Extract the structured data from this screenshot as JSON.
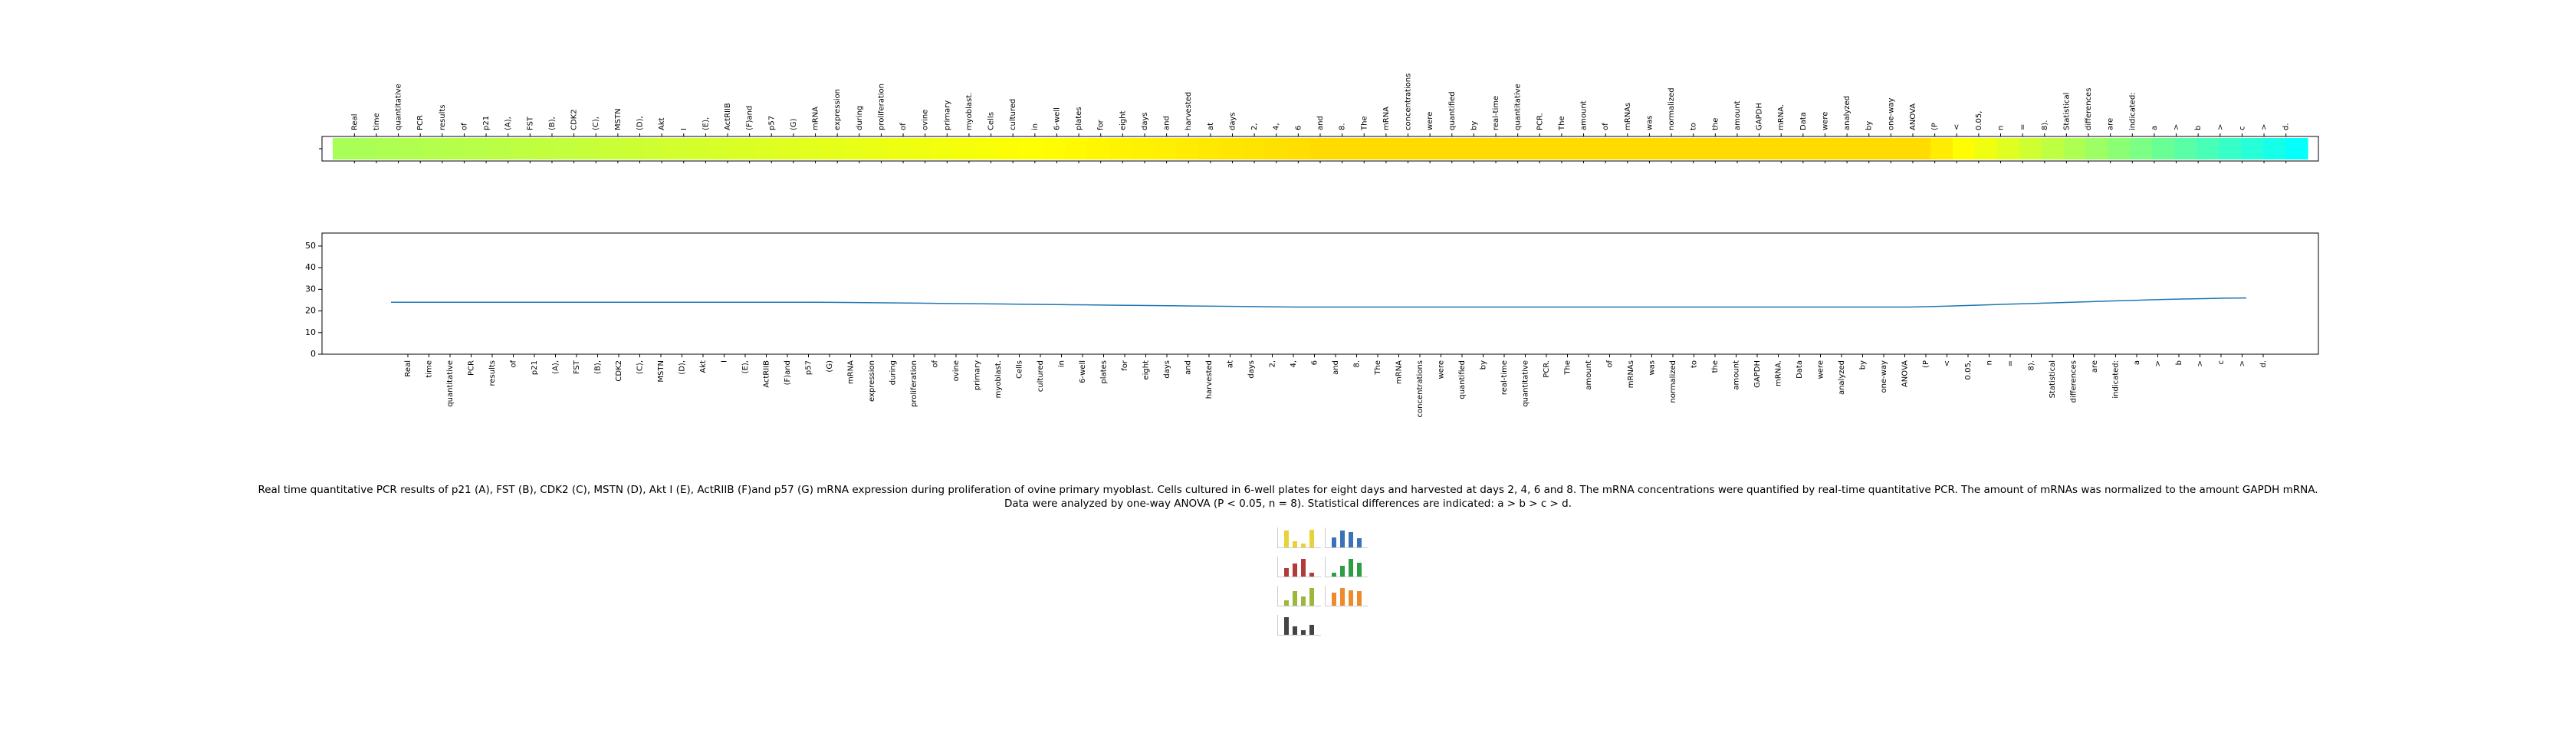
{
  "caption": "Real time quantitative PCR results of p21 (A), FST (B), CDK2 (C), MSTN (D), Akt I (E), ActRIIB (F)and p57 (G) mRNA expression during proliferation of ovine primary myoblast. Cells cultured in 6-well plates for eight days and harvested at days 2, 4, 6 and 8. The mRNA concentrations were quantified by real-time quantitative PCR. The amount of mRNAs was normalized to the amount GAPDH mRNA. Data were analyzed by one-way ANOVA (P < 0.05, n = 8). Statistical differences are indicated: a > b > c > d.",
  "chart_data": [
    {
      "type": "heatmap",
      "colormap": "jet",
      "x_tick_position": "top",
      "ticks": [
        "Real",
        "time",
        "quantitative",
        "PCR",
        "results",
        "of",
        "p21",
        "(A),",
        "FST",
        "(B),",
        "CDK2",
        "(C),",
        "MSTN",
        "(D),",
        "Akt",
        "I",
        "(E),",
        "ActRIIB",
        "(F)and",
        "p57",
        "(G)",
        "mRNA",
        "expression",
        "during",
        "proliferation",
        "of",
        "ovine",
        "primary",
        "myoblast.",
        "Cells",
        "cultured",
        "in",
        "6-well",
        "plates",
        "for",
        "eight",
        "days",
        "and",
        "harvested",
        "at",
        "days",
        "2,",
        "4,",
        "6",
        "and",
        "8.",
        "The",
        "mRNA",
        "concentrations",
        "were",
        "quantified",
        "by",
        "real-time",
        "quantitative",
        "PCR.",
        "The",
        "amount",
        "of",
        "mRNAs",
        "was",
        "normalized",
        "to",
        "the",
        "amount",
        "GAPDH",
        "mRNA.",
        "Data",
        "were",
        "analyzed",
        "by",
        "one-way",
        "ANOVA",
        "(P",
        "<",
        "0.05,",
        "n",
        "=",
        "8).",
        "Statistical",
        "differences",
        "are",
        "indicated:",
        "a",
        ">",
        "b",
        ">",
        "c",
        ">",
        "d."
      ],
      "values": [
        24.0,
        23.95,
        23.9,
        23.85,
        23.8,
        23.75,
        23.7,
        23.65,
        23.6,
        23.55,
        23.5,
        23.45,
        23.4,
        23.35,
        23.3,
        23.25,
        23.2,
        23.15,
        23.1,
        23.05,
        23.0,
        22.95,
        22.9,
        22.85,
        22.8,
        22.75,
        22.7,
        22.65,
        22.6,
        22.55,
        22.5,
        22.45,
        22.4,
        22.35,
        22.3,
        22.25,
        22.2,
        22.15,
        22.1,
        22.05,
        22.0,
        21.95,
        21.9,
        21.85,
        21.8,
        21.8,
        21.8,
        21.8,
        21.8,
        21.8,
        21.8,
        21.8,
        21.8,
        21.8,
        21.8,
        21.8,
        21.8,
        21.8,
        21.8,
        21.8,
        21.8,
        21.8,
        21.8,
        21.8,
        21.8,
        21.8,
        21.8,
        21.8,
        21.8,
        21.8,
        21.8,
        21.8,
        22.1,
        22.4,
        22.7,
        23.0,
        23.3,
        23.6,
        23.9,
        24.2,
        24.5,
        24.8,
        25.1,
        25.4,
        25.7,
        26.0,
        26.3,
        26.6,
        26.9
      ]
    },
    {
      "type": "line",
      "x_tick_position": "bottom",
      "ticks": [
        "Real",
        "time",
        "quantitative",
        "PCR",
        "results",
        "of",
        "p21",
        "(A),",
        "FST",
        "(B),",
        "CDK2",
        "(C),",
        "MSTN",
        "(D),",
        "Akt",
        "I",
        "(E),",
        "ActRIIB",
        "(F)and",
        "p57",
        "(G)",
        "mRNA",
        "expression",
        "during",
        "proliferation",
        "of",
        "ovine",
        "primary",
        "myoblast.",
        "Cells",
        "cultured",
        "in",
        "6-well",
        "plates",
        "for",
        "eight",
        "days",
        "and",
        "harvested",
        "at",
        "days",
        "2,",
        "4,",
        "6",
        "and",
        "8.",
        "The",
        "mRNA",
        "concentrations",
        "were",
        "quantified",
        "by",
        "real-time",
        "quantitative",
        "PCR.",
        "The",
        "amount",
        "of",
        "mRNAs",
        "was",
        "normalized",
        "to",
        "the",
        "amount",
        "GAPDH",
        "mRNA.",
        "Data",
        "were",
        "analyzed",
        "by",
        "one-way",
        "ANOVA",
        "(P",
        "<",
        "0.05,",
        "n",
        "=",
        "8).",
        "Statistical",
        "differences",
        "are",
        "indicated:",
        "a",
        ">",
        "b",
        ">",
        "c",
        ">",
        "d."
      ],
      "y_ticks": [
        "0",
        "10",
        "20",
        "30",
        "40",
        "50"
      ],
      "ylim": [
        0,
        56
      ],
      "series": [
        {
          "color": "#1f77b4",
          "values": [
            24.0,
            24.0,
            24.0,
            24.0,
            24.0,
            24.0,
            24.0,
            24.0,
            24.0,
            24.0,
            24.0,
            24.0,
            24.0,
            24.0,
            24.0,
            24.0,
            24.0,
            24.0,
            24.0,
            24.0,
            24.0,
            23.95,
            23.9,
            23.8,
            23.7,
            23.6,
            23.5,
            23.4,
            23.3,
            23.2,
            23.1,
            23.0,
            22.9,
            22.8,
            22.7,
            22.6,
            22.5,
            22.4,
            22.3,
            22.2,
            22.1,
            22.0,
            21.9,
            21.8,
            21.8,
            21.8,
            21.8,
            21.8,
            21.8,
            21.8,
            21.8,
            21.8,
            21.8,
            21.8,
            21.8,
            21.8,
            21.8,
            21.8,
            21.8,
            21.8,
            21.8,
            21.8,
            21.8,
            21.8,
            21.8,
            21.8,
            21.8,
            21.8,
            21.8,
            21.8,
            21.8,
            21.8,
            21.8,
            22.0,
            22.3,
            22.6,
            22.9,
            23.2,
            23.5,
            23.8,
            24.1,
            24.4,
            24.7,
            25.0,
            25.3,
            25.5,
            25.7,
            25.9,
            26.0
          ]
        }
      ]
    }
  ],
  "thumbnail": {
    "panels": [
      {
        "color": "#e8d23a",
        "values": [
          0.9,
          0.35,
          0.2,
          0.95
        ]
      },
      {
        "color": "#3b73b9",
        "values": [
          0.55,
          0.9,
          0.85,
          0.5
        ]
      },
      {
        "color": "#b33a3a",
        "values": [
          0.45,
          0.7,
          0.95,
          0.2
        ]
      },
      {
        "color": "#2e9d45",
        "values": [
          0.2,
          0.6,
          0.95,
          0.75
        ]
      },
      {
        "color": "#9cb83b",
        "values": [
          0.3,
          0.8,
          0.5,
          0.95
        ]
      },
      {
        "color": "#ee8a2b",
        "values": [
          0.7,
          0.95,
          0.85,
          0.8
        ]
      },
      {
        "color": "#444444",
        "values": [
          0.95,
          0.45,
          0.25,
          0.55
        ]
      }
    ]
  }
}
